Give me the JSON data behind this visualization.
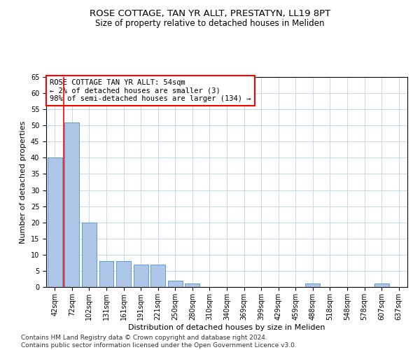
{
  "title": "ROSE COTTAGE, TAN YR ALLT, PRESTATYN, LL19 8PT",
  "subtitle": "Size of property relative to detached houses in Meliden",
  "xlabel": "Distribution of detached houses by size in Meliden",
  "ylabel": "Number of detached properties",
  "categories": [
    "42sqm",
    "72sqm",
    "102sqm",
    "131sqm",
    "161sqm",
    "191sqm",
    "221sqm",
    "250sqm",
    "280sqm",
    "310sqm",
    "340sqm",
    "369sqm",
    "399sqm",
    "429sqm",
    "459sqm",
    "488sqm",
    "518sqm",
    "548sqm",
    "578sqm",
    "607sqm",
    "637sqm"
  ],
  "values": [
    40,
    51,
    20,
    8,
    8,
    7,
    7,
    2,
    1,
    0,
    0,
    0,
    0,
    0,
    0,
    1,
    0,
    0,
    0,
    1,
    0
  ],
  "bar_color": "#aec6e8",
  "bar_edge_color": "#5b9bd5",
  "marker_label": "ROSE COTTAGE TAN YR ALLT: 54sqm",
  "annotation_line1": "← 2% of detached houses are smaller (3)",
  "annotation_line2": "98% of semi-detached houses are larger (134) →",
  "annotation_box_color": "white",
  "annotation_box_edge_color": "red",
  "ylim": [
    0,
    65
  ],
  "yticks": [
    0,
    5,
    10,
    15,
    20,
    25,
    30,
    35,
    40,
    45,
    50,
    55,
    60,
    65
  ],
  "footer_line1": "Contains HM Land Registry data © Crown copyright and database right 2024.",
  "footer_line2": "Contains public sector information licensed under the Open Government Licence v3.0.",
  "bg_color": "#ffffff",
  "grid_color": "#c8d8ea",
  "title_fontsize": 9.5,
  "subtitle_fontsize": 8.5,
  "axis_label_fontsize": 8,
  "tick_fontsize": 7,
  "annotation_fontsize": 7.5,
  "footer_fontsize": 6.5
}
